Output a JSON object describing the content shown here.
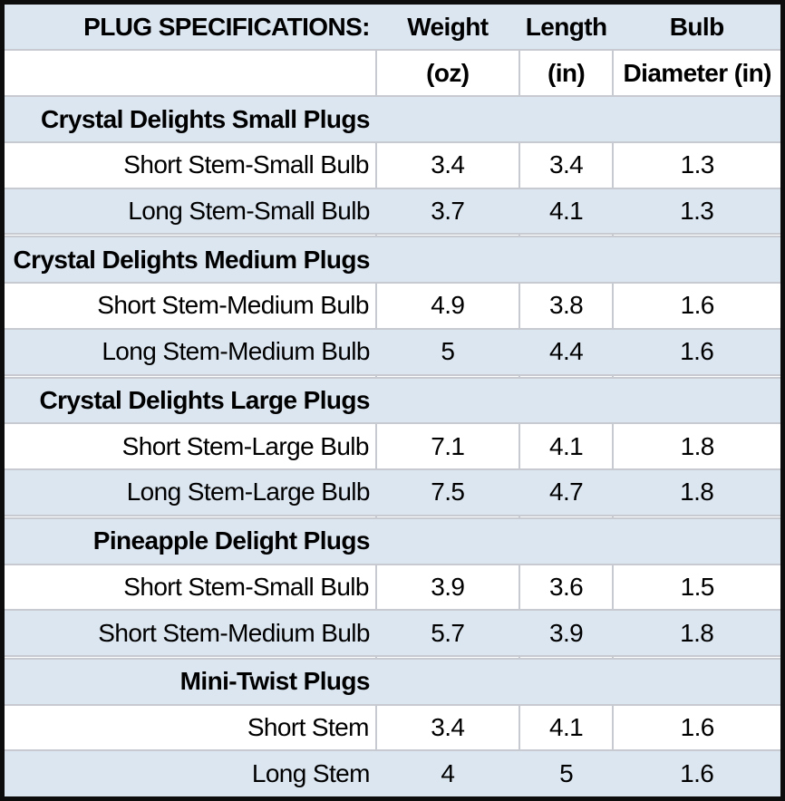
{
  "table": {
    "title": "PLUG SPECIFICATIONS:",
    "columns": [
      "Weight",
      "Length",
      "Bulb"
    ],
    "units": [
      "(oz)",
      "(in)",
      "Diameter (in)"
    ],
    "sections": [
      {
        "name": "Crystal Delights Small Plugs",
        "rows": [
          {
            "label": "Short Stem-Small Bulb",
            "weight": "3.4",
            "length": "3.4",
            "diameter": "1.3"
          },
          {
            "label": "Long Stem-Small Bulb",
            "weight": "3.7",
            "length": "4.1",
            "diameter": "1.3"
          }
        ]
      },
      {
        "name": "Crystal Delights Medium Plugs",
        "rows": [
          {
            "label": "Short Stem-Medium Bulb",
            "weight": "4.9",
            "length": "3.8",
            "diameter": "1.6"
          },
          {
            "label": "Long Stem-Medium Bulb",
            "weight": "5",
            "length": "4.4",
            "diameter": "1.6"
          }
        ]
      },
      {
        "name": "Crystal Delights Large Plugs",
        "rows": [
          {
            "label": "Short Stem-Large Bulb",
            "weight": "7.1",
            "length": "4.1",
            "diameter": "1.8"
          },
          {
            "label": "Long Stem-Large Bulb",
            "weight": "7.5",
            "length": "4.7",
            "diameter": "1.8"
          }
        ]
      },
      {
        "name": "Pineapple Delight Plugs",
        "rows": [
          {
            "label": "Short Stem-Small Bulb",
            "weight": "3.9",
            "length": "3.6",
            "diameter": "1.5"
          },
          {
            "label": "Short Stem-Medium Bulb",
            "weight": "5.7",
            "length": "3.9",
            "diameter": "1.8"
          }
        ]
      },
      {
        "name": "Mini-Twist Plugs",
        "rows": [
          {
            "label": "Short Stem",
            "weight": "3.4",
            "length": "4.1",
            "diameter": "1.6"
          },
          {
            "label": "Long Stem",
            "weight": "4",
            "length": "5",
            "diameter": "1.6"
          }
        ]
      }
    ],
    "colors": {
      "band_blue": "#dce6f1",
      "gridline": "#c7cbd1",
      "border_black": "#0d0d0d"
    }
  }
}
